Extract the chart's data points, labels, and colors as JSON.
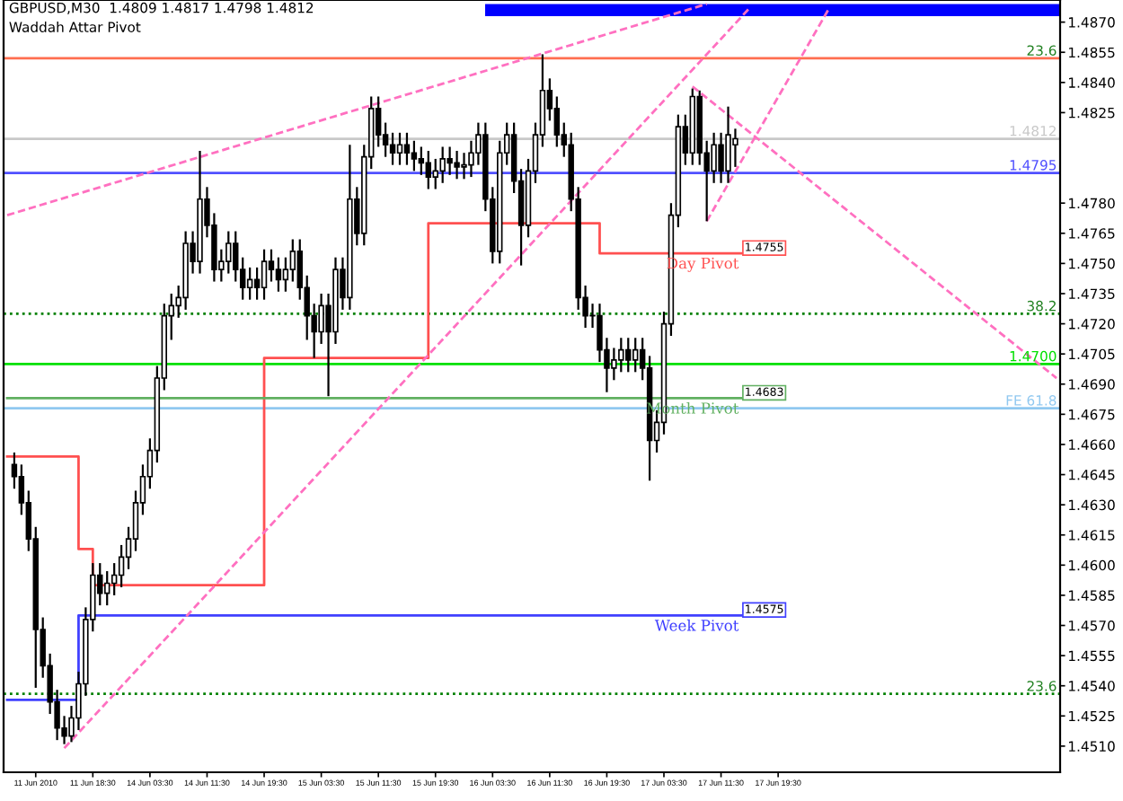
{
  "chart_data": {
    "type": "candlestick",
    "title": "GBPUSD,M30  1.4809 1.4817 1.4798 1.4812",
    "subtitle": "Waddah Attar Pivot",
    "categories": [
      null,
      null,
      null,
      null,
      "11 Jun 2010",
      null,
      null,
      null,
      null,
      null,
      null,
      null,
      "11 Jun 18:30",
      null,
      null,
      null,
      null,
      null,
      null,
      null,
      "14 Jun 03:30",
      null,
      null,
      null,
      null,
      null,
      null,
      null,
      "14 Jun 11:30",
      null,
      null,
      null,
      null,
      null,
      null,
      null,
      "14 Jun 19:30",
      null,
      null,
      null,
      null,
      null,
      null,
      null,
      "15 Jun 03:30",
      null,
      null,
      null,
      null,
      null,
      null,
      null,
      "15 Jun 11:30",
      null,
      null,
      null,
      null,
      null,
      null,
      null,
      "15 Jun 19:30",
      null,
      null,
      null,
      null,
      null,
      null,
      null,
      "16 Jun 03:30",
      null,
      null,
      null,
      null,
      null,
      null,
      null,
      "16 Jun 11:30",
      null,
      null,
      null,
      null,
      null,
      null,
      null,
      "16 Jun 19:30",
      null,
      null,
      null,
      null,
      null,
      null,
      null,
      "17 Jun 03:30",
      null,
      null,
      null,
      null,
      null,
      null,
      null,
      "17 Jun 11:30",
      null,
      null,
      null,
      null,
      null,
      null,
      null,
      "17 Jun 19:30",
      null,
      null,
      null,
      null,
      null,
      null,
      null,
      null,
      null,
      null,
      null,
      null,
      null,
      null,
      null,
      null,
      null,
      null,
      null,
      null,
      null,
      null,
      null,
      null,
      null,
      null,
      null,
      null,
      null,
      null,
      null,
      null,
      null,
      null,
      null,
      null,
      null,
      null,
      null
    ],
    "ohlc": [
      null,
      [
        1.465,
        1.4656,
        1.4638,
        1.4644
      ],
      [
        1.4644,
        1.465,
        1.4625,
        1.4631
      ],
      [
        1.4631,
        1.4637,
        1.4607,
        1.4613
      ],
      [
        1.4613,
        1.4619,
        1.4539,
        1.4568
      ],
      [
        1.4568,
        1.4574,
        1.4544,
        1.455
      ],
      [
        1.455,
        1.4556,
        1.4526,
        1.4532
      ],
      [
        1.4532,
        1.4538,
        1.4513,
        1.4519
      ],
      [
        1.4519,
        1.4525,
        1.4511,
        1.4515
      ],
      [
        1.4515,
        1.453,
        1.4512,
        1.4524
      ],
      [
        1.4524,
        1.4547,
        1.4518,
        1.4541
      ],
      [
        1.4541,
        1.4579,
        1.4535,
        1.4573
      ],
      [
        1.4573,
        1.4601,
        1.4567,
        1.4595
      ],
      [
        1.4595,
        1.4601,
        1.458,
        1.4586
      ],
      [
        1.4586,
        1.4597,
        1.458,
        1.4591
      ],
      [
        1.4591,
        1.4601,
        1.4585,
        1.4595
      ],
      [
        1.4595,
        1.461,
        1.4589,
        1.4604
      ],
      [
        1.4604,
        1.4619,
        1.4598,
        1.4613
      ],
      [
        1.4613,
        1.4637,
        1.4607,
        1.4631
      ],
      [
        1.4631,
        1.465,
        1.4625,
        1.4644
      ],
      [
        1.4644,
        1.4663,
        1.4638,
        1.4657
      ],
      [
        1.4657,
        1.4699,
        1.4651,
        1.4693
      ],
      [
        1.4693,
        1.473,
        1.4687,
        1.4724
      ],
      [
        1.4724,
        1.4735,
        1.4712,
        1.4729
      ],
      [
        1.4729,
        1.4739,
        1.4723,
        1.4733
      ],
      [
        1.4733,
        1.4766,
        1.4727,
        1.476
      ],
      [
        1.476,
        1.4766,
        1.4745,
        1.4751
      ],
      [
        1.4751,
        1.4806,
        1.4745,
        1.4782
      ],
      [
        1.4782,
        1.4788,
        1.4763,
        1.4769
      ],
      [
        1.4769,
        1.4775,
        1.4741,
        1.4747
      ],
      [
        1.4747,
        1.4757,
        1.4741,
        1.4751
      ],
      [
        1.4751,
        1.4766,
        1.4745,
        1.476
      ],
      [
        1.476,
        1.4766,
        1.4741,
        1.4747
      ],
      [
        1.4747,
        1.4753,
        1.4732,
        1.4738
      ],
      [
        1.4738,
        1.4748,
        1.4732,
        1.4742
      ],
      [
        1.4742,
        1.4748,
        1.4732,
        1.4738
      ],
      [
        1.4738,
        1.4757,
        1.4732,
        1.4751
      ],
      [
        1.4751,
        1.4757,
        1.4741,
        1.4747
      ],
      [
        1.4747,
        1.4753,
        1.4736,
        1.4742
      ],
      [
        1.4742,
        1.4753,
        1.4736,
        1.4747
      ],
      [
        1.4747,
        1.4762,
        1.4741,
        1.4756
      ],
      [
        1.4756,
        1.4762,
        1.4732,
        1.4738
      ],
      [
        1.4738,
        1.4744,
        1.4712,
        1.4724
      ],
      [
        1.4724,
        1.473,
        1.4703,
        1.4716
      ],
      [
        1.4716,
        1.4735,
        1.471,
        1.4729
      ],
      [
        1.4729,
        1.4735,
        1.4684,
        1.4716
      ],
      [
        1.4716,
        1.4753,
        1.471,
        1.4747
      ],
      [
        1.4747,
        1.4753,
        1.4727,
        1.4733
      ],
      [
        1.4733,
        1.4809,
        1.4727,
        1.4782
      ],
      [
        1.4782,
        1.4788,
        1.4759,
        1.4765
      ],
      [
        1.4765,
        1.4809,
        1.4759,
        1.4803
      ],
      [
        1.4803,
        1.4833,
        1.4797,
        1.4827
      ],
      [
        1.4827,
        1.4833,
        1.4808,
        1.4814
      ],
      [
        1.4814,
        1.482,
        1.4803,
        1.4809
      ],
      [
        1.4809,
        1.4815,
        1.4799,
        1.4805
      ],
      [
        1.4805,
        1.4815,
        1.4799,
        1.4809
      ],
      [
        1.4809,
        1.4815,
        1.4799,
        1.4805
      ],
      [
        1.4805,
        1.4811,
        1.4796,
        1.4802
      ],
      [
        1.4802,
        1.4808,
        1.4794,
        1.48
      ],
      [
        1.48,
        1.4806,
        1.4787,
        1.4793
      ],
      [
        1.4793,
        1.4802,
        1.4787,
        1.4796
      ],
      [
        1.4796,
        1.4808,
        1.479,
        1.4802
      ],
      [
        1.4802,
        1.4808,
        1.4794,
        1.48
      ],
      [
        1.48,
        1.4806,
        1.4792,
        1.4798
      ],
      [
        1.4798,
        1.4805,
        1.4792,
        1.4799
      ],
      [
        1.4799,
        1.4811,
        1.4793,
        1.4805
      ],
      [
        1.4805,
        1.482,
        1.4799,
        1.4814
      ],
      [
        1.4814,
        1.482,
        1.4776,
        1.4782
      ],
      [
        1.4782,
        1.4788,
        1.475,
        1.4756
      ],
      [
        1.4756,
        1.4811,
        1.475,
        1.4805
      ],
      [
        1.4805,
        1.482,
        1.4799,
        1.4814
      ],
      [
        1.4814,
        1.482,
        1.4785,
        1.4791
      ],
      [
        1.4791,
        1.4797,
        1.4749,
        1.4769
      ],
      [
        1.4769,
        1.4802,
        1.4763,
        1.4796
      ],
      [
        1.4796,
        1.482,
        1.479,
        1.4814
      ],
      [
        1.4814,
        1.4854,
        1.4808,
        1.4836
      ],
      [
        1.4836,
        1.4842,
        1.4821,
        1.4827
      ],
      [
        1.4827,
        1.4833,
        1.4808,
        1.4814
      ],
      [
        1.4814,
        1.482,
        1.4803,
        1.4809
      ],
      [
        1.4809,
        1.4815,
        1.4776,
        1.4782
      ],
      [
        1.4782,
        1.4788,
        1.4727,
        1.4733
      ],
      [
        1.4733,
        1.4739,
        1.4718,
        1.4724
      ],
      [
        1.4724,
        1.473,
        1.4718,
        1.4724
      ],
      [
        1.4724,
        1.473,
        1.4701,
        1.4707
      ],
      [
        1.4707,
        1.4713,
        1.4686,
        1.4698
      ],
      [
        1.4698,
        1.4708,
        1.4692,
        1.4702
      ],
      [
        1.4702,
        1.4713,
        1.4696,
        1.4707
      ],
      [
        1.4707,
        1.4713,
        1.4696,
        1.4702
      ],
      [
        1.4702,
        1.4713,
        1.4696,
        1.4707
      ],
      [
        1.4707,
        1.4713,
        1.4692,
        1.4698
      ],
      [
        1.4698,
        1.4704,
        1.4642,
        1.4662
      ],
      [
        1.4662,
        1.4677,
        1.4656,
        1.4671
      ],
      [
        1.4671,
        1.4726,
        1.4665,
        1.472
      ],
      [
        1.472,
        1.478,
        1.4714,
        1.4774
      ],
      [
        1.4774,
        1.4824,
        1.4768,
        1.4818
      ],
      [
        1.4818,
        1.4824,
        1.4799,
        1.4805
      ],
      [
        1.4805,
        1.4837,
        1.4799,
        1.4833
      ],
      [
        1.4833,
        1.4836,
        1.4799,
        1.4805
      ],
      [
        1.4805,
        1.4811,
        1.4771,
        1.4796
      ],
      [
        1.4796,
        1.4815,
        1.479,
        1.4809
      ],
      [
        1.4809,
        1.4815,
        1.479,
        1.4796
      ],
      [
        1.4796,
        1.4828,
        1.479,
        1.4814
      ],
      [
        1.4809,
        1.4817,
        1.4798,
        1.4812
      ],
      null,
      null,
      null,
      null,
      null,
      null,
      null,
      null,
      null,
      null,
      null,
      null,
      null,
      null,
      null,
      null,
      null,
      null,
      null,
      null,
      null,
      null,
      null,
      null,
      null,
      null,
      null,
      null,
      null,
      null,
      null,
      null,
      null,
      null,
      null,
      null,
      null,
      null,
      null,
      null,
      null,
      null,
      null,
      null,
      null
    ],
    "series": [
      {
        "type": "step",
        "name": "Day Pivot",
        "color": "#ff5050",
        "values": [
          1.4654,
          null,
          null,
          null,
          null,
          null,
          null,
          null,
          null,
          null,
          1.4608,
          null,
          1.459,
          null,
          null,
          null,
          null,
          null,
          null,
          null,
          null,
          null,
          null,
          null,
          null,
          null,
          null,
          null,
          null,
          null,
          null,
          null,
          null,
          null,
          null,
          null,
          1.4703,
          null,
          null,
          null,
          null,
          null,
          null,
          null,
          null,
          null,
          null,
          null,
          null,
          null,
          null,
          null,
          null,
          null,
          null,
          null,
          null,
          null,
          null,
          1.477,
          null,
          null,
          null,
          null,
          null,
          null,
          null,
          null,
          null,
          null,
          null,
          null,
          null,
          null,
          null,
          null,
          null,
          null,
          null,
          null,
          null,
          null,
          null,
          1.4755,
          null,
          null,
          null,
          null,
          null,
          null,
          null,
          null,
          null,
          null,
          null,
          null,
          null,
          null,
          null,
          null,
          null,
          null,
          null,
          1.4755,
          null,
          null,
          null,
          null,
          null,
          null,
          null,
          null,
          null,
          null,
          null,
          null,
          null,
          null,
          null,
          null,
          null,
          null,
          null,
          null,
          null,
          null,
          null,
          null,
          null,
          null,
          null,
          null,
          null,
          null,
          null,
          null,
          null,
          null,
          null,
          null,
          null,
          null,
          null,
          null,
          null,
          null,
          null,
          null
        ],
        "value_labels": [
          null,
          null,
          null,
          null,
          null,
          null,
          null,
          null,
          null,
          null,
          null,
          null,
          null,
          null,
          null,
          null,
          null,
          null,
          null,
          null,
          null,
          null,
          null,
          null,
          null,
          null,
          null,
          null,
          null,
          null,
          null,
          null,
          null,
          null,
          null,
          null,
          null,
          null,
          null,
          null,
          null,
          null,
          null,
          null,
          null,
          null,
          null,
          null,
          null,
          null,
          null,
          null,
          null,
          null,
          null,
          null,
          null,
          null,
          null,
          null,
          null,
          null,
          null,
          null,
          null,
          null,
          null,
          null,
          null,
          null,
          null,
          null,
          null,
          null,
          null,
          null,
          null,
          null,
          null,
          null,
          null,
          null,
          null,
          null,
          null,
          null,
          null,
          null,
          null,
          null,
          null,
          null,
          null,
          null,
          null,
          null,
          null,
          null,
          null,
          null,
          null,
          null,
          null,
          "1.4755",
          null,
          null,
          null,
          null,
          null,
          null,
          null,
          null,
          null,
          null,
          null,
          null,
          null,
          null,
          null,
          null,
          null,
          null,
          null,
          null,
          null,
          null,
          null,
          null,
          null,
          null,
          null,
          null,
          null,
          null,
          null,
          null,
          null,
          null,
          null,
          null,
          null,
          null,
          null,
          null,
          null,
          null,
          null,
          null
        ]
      },
      {
        "type": "step",
        "name": "Week Pivot",
        "color": "#4040ff",
        "values": [
          1.4533,
          null,
          null,
          null,
          null,
          null,
          null,
          null,
          null,
          null,
          1.4575,
          null,
          null,
          null,
          null,
          null,
          null,
          null,
          null,
          null,
          null,
          null,
          null,
          null,
          null,
          null,
          null,
          null,
          null,
          null,
          null,
          null,
          null,
          null,
          null,
          null,
          null,
          null,
          null,
          null,
          null,
          null,
          null,
          null,
          null,
          null,
          null,
          null,
          null,
          null,
          null,
          null,
          null,
          null,
          null,
          null,
          null,
          null,
          null,
          null,
          null,
          null,
          null,
          null,
          null,
          null,
          null,
          null,
          null,
          null,
          null,
          null,
          null,
          null,
          null,
          null,
          null,
          null,
          null,
          null,
          null,
          null,
          null,
          null,
          null,
          null,
          null,
          null,
          null,
          null,
          null,
          null,
          null,
          null,
          null,
          null,
          null,
          null,
          null,
          null,
          null,
          null,
          null,
          1.4575,
          null,
          null,
          null,
          null,
          null,
          null,
          null,
          null,
          null,
          null,
          null,
          null,
          null,
          null,
          null,
          null,
          null,
          null,
          null,
          null,
          null,
          null,
          null,
          null,
          null,
          null,
          null,
          null,
          null,
          null,
          null,
          null,
          null,
          null,
          null,
          null,
          null,
          null,
          null,
          null,
          null,
          null,
          null,
          null
        ],
        "value_labels": [
          null,
          null,
          null,
          null,
          null,
          null,
          null,
          null,
          null,
          null,
          null,
          null,
          null,
          null,
          null,
          null,
          null,
          null,
          null,
          null,
          null,
          null,
          null,
          null,
          null,
          null,
          null,
          null,
          null,
          null,
          null,
          null,
          null,
          null,
          null,
          null,
          null,
          null,
          null,
          null,
          null,
          null,
          null,
          null,
          null,
          null,
          null,
          null,
          null,
          null,
          null,
          null,
          null,
          null,
          null,
          null,
          null,
          null,
          null,
          null,
          null,
          null,
          null,
          null,
          null,
          null,
          null,
          null,
          null,
          null,
          null,
          null,
          null,
          null,
          null,
          null,
          null,
          null,
          null,
          null,
          null,
          null,
          null,
          null,
          null,
          null,
          null,
          null,
          null,
          null,
          null,
          null,
          null,
          null,
          null,
          null,
          null,
          null,
          null,
          null,
          null,
          null,
          null,
          "1.4575",
          null,
          null,
          null,
          null,
          null,
          null,
          null,
          null,
          null,
          null,
          null,
          null,
          null,
          null,
          null,
          null,
          null,
          null,
          null,
          null,
          null,
          null,
          null,
          null,
          null,
          null,
          null,
          null,
          null,
          null,
          null,
          null,
          null,
          null,
          null,
          null,
          null,
          null,
          null,
          null,
          null,
          null,
          null,
          null
        ]
      },
      {
        "type": "line",
        "name": "Month Pivot",
        "color": "#60b060",
        "values": [
          1.4683,
          null,
          null,
          null,
          null,
          null,
          null,
          null,
          null,
          null,
          null,
          null,
          null,
          null,
          null,
          null,
          null,
          null,
          null,
          null,
          null,
          null,
          null,
          null,
          null,
          null,
          null,
          null,
          null,
          null,
          null,
          null,
          null,
          null,
          null,
          null,
          null,
          null,
          null,
          null,
          null,
          null,
          null,
          null,
          null,
          null,
          null,
          null,
          null,
          null,
          null,
          null,
          null,
          null,
          null,
          null,
          null,
          null,
          null,
          null,
          null,
          null,
          null,
          null,
          null,
          null,
          null,
          null,
          null,
          null,
          null,
          null,
          null,
          null,
          null,
          null,
          null,
          null,
          null,
          null,
          null,
          null,
          null,
          null,
          null,
          null,
          null,
          null,
          null,
          null,
          null,
          null,
          null,
          null,
          null,
          null,
          null,
          null,
          null,
          null,
          null,
          null,
          null,
          1.4683,
          null,
          null,
          null,
          null,
          null,
          null,
          null,
          null,
          null,
          null,
          null,
          null,
          null,
          null,
          null,
          null,
          null,
          null,
          null,
          null,
          null,
          null,
          null,
          null,
          null,
          null,
          null,
          null,
          null,
          null,
          null,
          null,
          null,
          null,
          null,
          null,
          null,
          null,
          null,
          null,
          null,
          null,
          null,
          null
        ],
        "value_labels": [
          null,
          null,
          null,
          null,
          null,
          null,
          null,
          null,
          null,
          null,
          null,
          null,
          null,
          null,
          null,
          null,
          null,
          null,
          null,
          null,
          null,
          null,
          null,
          null,
          null,
          null,
          null,
          null,
          null,
          null,
          null,
          null,
          null,
          null,
          null,
          null,
          null,
          null,
          null,
          null,
          null,
          null,
          null,
          null,
          null,
          null,
          null,
          null,
          null,
          null,
          null,
          null,
          null,
          null,
          null,
          null,
          null,
          null,
          null,
          null,
          null,
          null,
          null,
          null,
          null,
          null,
          null,
          null,
          null,
          null,
          null,
          null,
          null,
          null,
          null,
          null,
          null,
          null,
          null,
          null,
          null,
          null,
          null,
          null,
          null,
          null,
          null,
          null,
          null,
          null,
          null,
          null,
          null,
          null,
          null,
          null,
          null,
          null,
          null,
          null,
          null,
          null,
          null,
          "1.4683",
          null,
          null,
          null,
          null,
          null,
          null,
          null,
          null,
          null,
          null,
          null,
          null,
          null,
          null,
          null,
          null,
          null,
          null,
          null,
          null,
          null,
          null,
          null,
          null,
          null,
          null,
          null,
          null,
          null,
          null,
          null,
          null,
          null,
          null,
          null,
          null,
          null,
          null,
          null,
          null,
          null,
          null,
          null,
          null
        ]
      },
      {
        "type": "line",
        "color": "#ff70c0",
        "line_style": "dashed",
        "values": [
          1.4774,
          null,
          null,
          null,
          null,
          null,
          null,
          null,
          null,
          null,
          null,
          null,
          null,
          null,
          null,
          null,
          null,
          null,
          null,
          null,
          null,
          null,
          null,
          null,
          null,
          null,
          null,
          null,
          null,
          null,
          null,
          null,
          null,
          null,
          null,
          null,
          null,
          null,
          null,
          null,
          null,
          null,
          null,
          null,
          null,
          null,
          null,
          null,
          null,
          null,
          null,
          null,
          null,
          null,
          null,
          null,
          null,
          null,
          null,
          null,
          null,
          null,
          null,
          null,
          null,
          null,
          null,
          null,
          null,
          null,
          null,
          null,
          null,
          null,
          null,
          null,
          null,
          null,
          null,
          null,
          null,
          null,
          null,
          null,
          null,
          null,
          null,
          null,
          null,
          null,
          null,
          null,
          null,
          null,
          null,
          null,
          null,
          null,
          1.4879,
          null,
          null,
          null,
          null,
          null,
          null,
          null,
          null,
          null,
          null,
          null,
          null,
          null,
          null,
          null,
          null,
          null,
          null,
          null,
          null,
          null,
          null,
          null,
          null,
          null,
          null,
          null,
          null,
          null,
          null,
          null,
          null,
          null,
          null,
          null,
          null,
          null,
          null,
          null,
          null,
          null,
          null,
          null,
          null,
          null,
          null,
          null,
          null,
          null
        ]
      },
      {
        "type": "line",
        "color": "#ff70c0",
        "line_style": "dashed",
        "values": [
          null,
          null,
          null,
          null,
          null,
          null,
          null,
          null,
          1.4509,
          null,
          null,
          null,
          null,
          null,
          null,
          null,
          null,
          null,
          null,
          null,
          null,
          null,
          null,
          null,
          null,
          null,
          null,
          null,
          null,
          null,
          null,
          null,
          null,
          null,
          null,
          null,
          null,
          null,
          null,
          null,
          null,
          null,
          null,
          null,
          null,
          null,
          null,
          null,
          null,
          null,
          null,
          null,
          null,
          null,
          null,
          null,
          null,
          null,
          null,
          null,
          null,
          null,
          null,
          null,
          null,
          null,
          null,
          null,
          null,
          null,
          null,
          null,
          null,
          null,
          null,
          null,
          null,
          null,
          null,
          null,
          null,
          null,
          null,
          null,
          null,
          null,
          null,
          null,
          null,
          null,
          null,
          null,
          null,
          null,
          null,
          null,
          null,
          null,
          null,
          null,
          null,
          null,
          null,
          null,
          1.4877,
          null,
          null,
          null,
          null,
          null,
          null,
          null,
          null,
          null,
          null,
          null,
          null,
          null,
          null,
          null,
          null,
          null,
          null,
          null,
          null,
          null,
          null,
          null,
          null,
          null,
          null,
          null,
          null,
          null,
          null,
          null,
          null,
          null,
          null,
          null,
          null,
          null,
          null,
          null,
          null,
          null,
          null,
          null
        ]
      },
      {
        "type": "line",
        "color": "#ff70c0",
        "line_style": "dashed",
        "values": [
          null,
          null,
          null,
          null,
          null,
          null,
          null,
          null,
          null,
          null,
          null,
          null,
          null,
          null,
          null,
          null,
          null,
          null,
          null,
          null,
          null,
          null,
          null,
          null,
          null,
          null,
          null,
          null,
          null,
          null,
          null,
          null,
          null,
          null,
          null,
          null,
          null,
          null,
          null,
          null,
          null,
          null,
          null,
          null,
          null,
          null,
          null,
          null,
          null,
          null,
          null,
          null,
          null,
          null,
          null,
          null,
          null,
          null,
          null,
          null,
          null,
          null,
          null,
          null,
          null,
          null,
          null,
          null,
          null,
          null,
          null,
          null,
          null,
          null,
          null,
          null,
          null,
          null,
          null,
          null,
          null,
          null,
          null,
          null,
          null,
          null,
          null,
          null,
          null,
          null,
          null,
          null,
          null,
          null,
          null,
          null,
          null,
          null,
          1.4771,
          null,
          null,
          null,
          null,
          null,
          null,
          null,
          null,
          null,
          null,
          null,
          null,
          null,
          null,
          null,
          null,
          1.4876,
          null,
          null,
          null,
          null,
          null,
          null,
          null,
          null,
          null,
          null,
          null,
          null,
          null,
          null,
          null,
          null,
          null,
          null,
          null,
          null,
          null,
          null,
          null,
          null,
          null,
          null,
          null,
          null,
          null,
          null,
          null,
          null
        ]
      },
      {
        "type": "line",
        "color": "#ff70c0",
        "line_style": "dashed",
        "values": [
          null,
          null,
          null,
          null,
          null,
          null,
          null,
          null,
          null,
          null,
          null,
          null,
          null,
          null,
          null,
          null,
          null,
          null,
          null,
          null,
          null,
          null,
          null,
          null,
          null,
          null,
          null,
          null,
          null,
          null,
          null,
          null,
          null,
          null,
          null,
          null,
          null,
          null,
          null,
          null,
          null,
          null,
          null,
          null,
          null,
          null,
          null,
          null,
          null,
          null,
          null,
          null,
          null,
          null,
          null,
          null,
          null,
          null,
          null,
          null,
          null,
          null,
          null,
          null,
          null,
          null,
          null,
          null,
          null,
          null,
          null,
          null,
          null,
          null,
          null,
          null,
          null,
          null,
          null,
          null,
          null,
          null,
          null,
          null,
          null,
          null,
          null,
          null,
          null,
          null,
          null,
          null,
          null,
          null,
          null,
          null,
          1.4838,
          null,
          null,
          null,
          null,
          null,
          null,
          null,
          null,
          null,
          null,
          null,
          null,
          null,
          null,
          null,
          null,
          null,
          null,
          null,
          null,
          null,
          null,
          null,
          null,
          null,
          null,
          null,
          null,
          null,
          null,
          null,
          null,
          null,
          null,
          null,
          null,
          null,
          null,
          null,
          null,
          null,
          null,
          null,
          null,
          null,
          null,
          null,
          null,
          null,
          null,
          1.4693
        ]
      }
    ],
    "annotations": [
      {
        "text": "23.6",
        "y": 1.4852
      },
      {
        "text": "38.2",
        "y": 1.4725
      },
      {
        "text": "23.6",
        "y": 1.4536
      }
    ],
    "ref_lines": [
      {
        "axis": "y",
        "value": 1.4852,
        "color": "#ff6f50"
      },
      {
        "axis": "y",
        "value": 1.4812,
        "label": "1.4812",
        "color": "#c8c8c8"
      },
      {
        "axis": "y",
        "value": 1.4795,
        "label": "1.4795",
        "color": "#5050ff"
      },
      {
        "axis": "y",
        "value": 1.4725,
        "color": "#008000",
        "line_style": "dotted"
      },
      {
        "axis": "y",
        "value": 1.47,
        "label": "1.4700",
        "color": "#00e000"
      },
      {
        "axis": "y",
        "value": 1.4678,
        "label": "FE 61.8",
        "color": "#90c8f0"
      },
      {
        "axis": "y",
        "value": 1.4536,
        "color": "#008000",
        "line_style": "dotted"
      }
    ],
    "bands": [
      {
        "axis": "y",
        "from": 1.4873,
        "to": 1.4879,
        "color": "#0000ff"
      }
    ],
    "ylim": [
      1.4497,
      1.4881
    ],
    "yticks": [
      {
        "value": 1.451,
        "label": "1.4510"
      },
      1.4525,
      {
        "value": 1.454,
        "label": "1.4540"
      },
      1.4555,
      {
        "value": 1.457,
        "label": "1.4570"
      },
      1.4585,
      {
        "value": 1.46,
        "label": "1.4600"
      },
      1.4615,
      {
        "value": 1.463,
        "label": "1.4630"
      },
      1.4645,
      {
        "value": 1.466,
        "label": "1.4660"
      },
      1.4675,
      {
        "value": 1.469,
        "label": "1.4690"
      },
      1.4705,
      {
        "value": 1.472,
        "label": "1.4720"
      },
      1.4735,
      {
        "value": 1.475,
        "label": "1.4750"
      },
      1.4765,
      {
        "value": 1.478,
        "label": "1.4780"
      },
      1.4825,
      {
        "value": 1.484,
        "label": "1.4840"
      },
      1.4855,
      {
        "value": 1.487,
        "label": "1.4870"
      }
    ],
    "grid": false,
    "legend": false
  }
}
